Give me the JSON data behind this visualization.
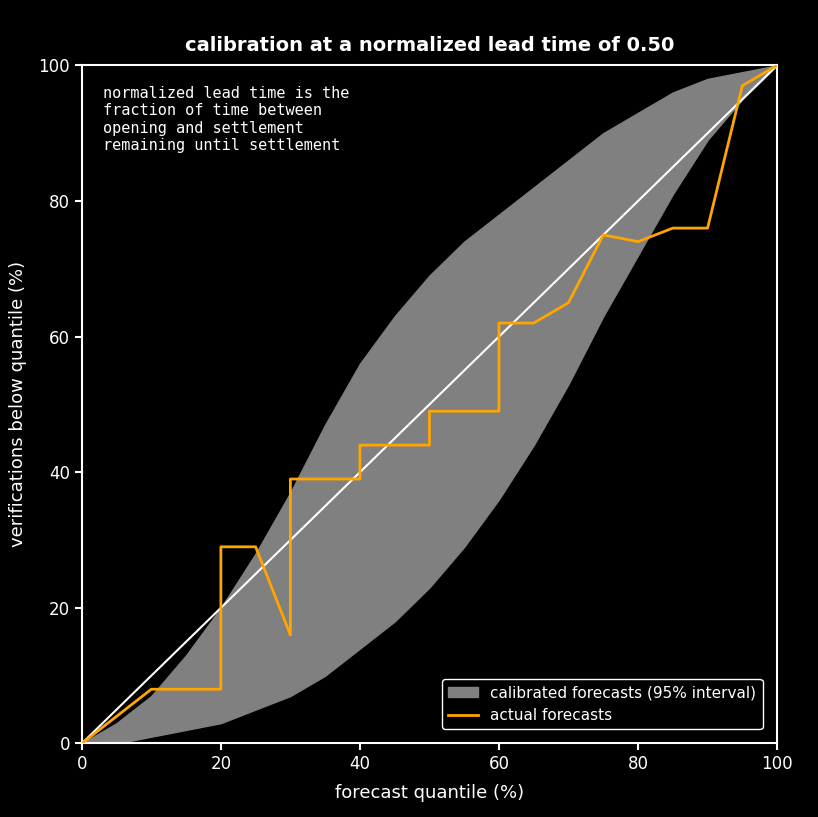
{
  "title": "calibration at a normalized lead time of 0.50",
  "xlabel": "forecast quantile (%)",
  "ylabel": "verifications below quantile (%)",
  "annotation": "normalized lead time is the\nfraction of time between\nopening and settlement\nremaining until settlement",
  "background_color": "#000000",
  "plot_bg_color": "#000000",
  "axis_color": "#ffffff",
  "text_color": "#ffffff",
  "diagonal_color": "#ffffff",
  "band_color": "#808080",
  "line_color": "#FFA500",
  "xlim": [
    0,
    100
  ],
  "ylim": [
    0,
    100
  ],
  "xticks": [
    0,
    20,
    40,
    60,
    80,
    100
  ],
  "yticks": [
    0,
    20,
    40,
    60,
    80,
    100
  ],
  "band_upper_x": [
    0,
    5,
    10,
    15,
    20,
    25,
    30,
    35,
    40,
    45,
    50,
    55,
    60,
    65,
    70,
    75,
    80,
    85,
    90,
    95,
    100
  ],
  "band_upper_y": [
    0,
    3,
    7,
    13,
    20,
    28,
    37,
    47,
    56,
    63,
    69,
    74,
    78,
    82,
    86,
    90,
    93,
    96,
    98,
    99,
    100
  ],
  "band_lower_x": [
    0,
    5,
    10,
    15,
    20,
    25,
    30,
    35,
    40,
    45,
    50,
    55,
    60,
    65,
    70,
    75,
    80,
    85,
    90,
    95,
    100
  ],
  "band_lower_y": [
    0,
    0,
    1,
    2,
    3,
    5,
    7,
    10,
    14,
    18,
    23,
    29,
    36,
    44,
    53,
    63,
    72,
    81,
    89,
    95,
    100
  ],
  "forecast_x": [
    0,
    10,
    20,
    20,
    25,
    30,
    30,
    40,
    40,
    45,
    50,
    50,
    55,
    60,
    60,
    65,
    70,
    75,
    80,
    85,
    90,
    95,
    100
  ],
  "forecast_y": [
    0,
    8,
    8,
    29,
    29,
    16,
    39,
    39,
    44,
    44,
    44,
    49,
    49,
    49,
    62,
    62,
    65,
    75,
    74,
    76,
    76,
    97,
    100
  ]
}
